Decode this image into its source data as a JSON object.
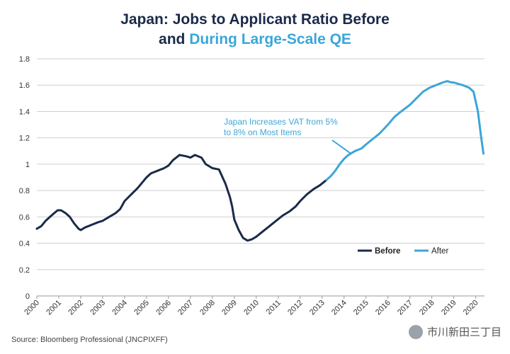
{
  "title": {
    "line1": "Japan: Jobs to Applicant Ratio Before",
    "line2_prefix": "and ",
    "line2_accent": "During Large-Scale QE"
  },
  "footer": {
    "source": "Source: Bloomberg Professional (JNCPIXFF)"
  },
  "watermark": {
    "text": "市川新田三丁目"
  },
  "colors": {
    "before": "#1b2a4a",
    "after": "#3aa6d8",
    "grid": "#cfcfcf",
    "text": "#333333"
  },
  "chart_data": {
    "type": "line",
    "title": "Japan: Jobs to Applicant Ratio Before and During Large-Scale QE",
    "xlabel": "",
    "ylabel": "",
    "xlim": [
      2000.0,
      2020.4
    ],
    "ylim": [
      0,
      1.8
    ],
    "yticks": [
      0,
      0.2,
      0.4,
      0.6,
      0.8,
      1,
      1.2,
      1.4,
      1.6,
      1.8
    ],
    "ytick_labels": [
      "0",
      "0.2",
      "0.4",
      "0.6",
      "0.8",
      "1",
      "1.2",
      "1.4",
      "1.6",
      "1.8"
    ],
    "xticks": [
      2000,
      2001,
      2002,
      2003,
      2004,
      2005,
      2006,
      2007,
      2008,
      2009,
      2010,
      2011,
      2012,
      2013,
      2014,
      2015,
      2016,
      2017,
      2018,
      2019,
      2020
    ],
    "xtick_labels": [
      "2000",
      "2001",
      "2002",
      "2003",
      "2004",
      "2005",
      "2006",
      "2007",
      "2008",
      "2009",
      "2010",
      "2011",
      "2012",
      "2013",
      "2014",
      "2015",
      "2016",
      "2017",
      "2018",
      "2019",
      "2020"
    ],
    "grid": "horizontal",
    "legend_position": "bottom-right",
    "series": [
      {
        "name": "Before",
        "x": [
          2000.0,
          2000.2,
          2000.4,
          2000.6,
          2000.8,
          2000.95,
          2001.1,
          2001.3,
          2001.5,
          2001.7,
          2001.9,
          2002.0,
          2002.2,
          2002.5,
          2002.8,
          2003.0,
          2003.3,
          2003.6,
          2003.8,
          2004.0,
          2004.3,
          2004.6,
          2004.8,
          2005.0,
          2005.2,
          2005.5,
          2005.8,
          2006.0,
          2006.2,
          2006.5,
          2006.8,
          2007.0,
          2007.2,
          2007.5,
          2007.7,
          2008.0,
          2008.3,
          2008.6,
          2008.8,
          2008.9,
          2009.0,
          2009.2,
          2009.4,
          2009.6,
          2009.8,
          2010.0,
          2010.3,
          2010.6,
          2010.9,
          2011.2,
          2011.5,
          2011.8,
          2012.0,
          2012.3,
          2012.6,
          2012.9,
          2013.2
        ],
        "values": [
          0.51,
          0.53,
          0.57,
          0.6,
          0.63,
          0.65,
          0.65,
          0.63,
          0.6,
          0.55,
          0.51,
          0.5,
          0.52,
          0.54,
          0.56,
          0.57,
          0.6,
          0.63,
          0.66,
          0.72,
          0.77,
          0.82,
          0.86,
          0.9,
          0.93,
          0.95,
          0.97,
          0.99,
          1.03,
          1.07,
          1.06,
          1.05,
          1.07,
          1.05,
          1.0,
          0.97,
          0.96,
          0.85,
          0.75,
          0.68,
          0.58,
          0.5,
          0.44,
          0.42,
          0.43,
          0.45,
          0.49,
          0.53,
          0.57,
          0.61,
          0.64,
          0.68,
          0.72,
          0.77,
          0.81,
          0.84,
          0.88
        ]
      },
      {
        "name": "After",
        "x": [
          2013.2,
          2013.4,
          2013.6,
          2013.8,
          2014.0,
          2014.2,
          2014.5,
          2014.8,
          2015.0,
          2015.3,
          2015.6,
          2016.0,
          2016.3,
          2016.6,
          2017.0,
          2017.3,
          2017.6,
          2017.9,
          2018.2,
          2018.5,
          2018.7,
          2018.9,
          2019.0,
          2019.2,
          2019.4,
          2019.7,
          2019.9,
          2020.1,
          2020.25,
          2020.35
        ],
        "values": [
          0.88,
          0.91,
          0.95,
          1.0,
          1.04,
          1.07,
          1.1,
          1.12,
          1.15,
          1.19,
          1.23,
          1.3,
          1.36,
          1.4,
          1.45,
          1.5,
          1.55,
          1.58,
          1.6,
          1.62,
          1.63,
          1.62,
          1.62,
          1.61,
          1.6,
          1.58,
          1.55,
          1.4,
          1.2,
          1.08
        ]
      }
    ],
    "annotation": {
      "text_line1": "Japan Increases VAT from 5%",
      "text_line2": "to 8% on Most Items",
      "points_to_x": 2014.3,
      "points_to_y": 1.06
    }
  }
}
